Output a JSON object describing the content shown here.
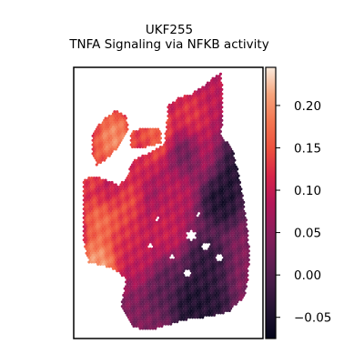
{
  "chart_data": {
    "type": "heatmap",
    "title": "UKF255",
    "subtitle": "TNFA Signaling via NFKB activity",
    "xlabel": "",
    "ylabel": "",
    "colormap": "rocket",
    "colorbar": {
      "range": [
        -0.075,
        0.245
      ],
      "ticks": [
        -0.05,
        0.0,
        0.05,
        0.1,
        0.15,
        0.2
      ],
      "tick_labels": [
        "−0.05",
        "0.00",
        "0.05",
        "0.10",
        "0.15",
        "0.20"
      ],
      "placement": "right"
    },
    "grid": false,
    "hotspots": [
      {
        "x": 0.13,
        "y": 0.73,
        "v": 0.23
      },
      {
        "x": 0.16,
        "y": 0.55,
        "v": 0.2
      },
      {
        "x": 0.25,
        "y": 0.48,
        "v": 0.18
      },
      {
        "x": 0.12,
        "y": 0.38,
        "v": 0.17
      },
      {
        "x": 0.22,
        "y": 0.27,
        "v": 0.22
      },
      {
        "x": 0.43,
        "y": 0.25,
        "v": 0.18
      },
      {
        "x": 0.34,
        "y": 0.33,
        "v": 0.12
      },
      {
        "x": 0.55,
        "y": 0.44,
        "v": 0.1
      },
      {
        "x": 0.62,
        "y": 0.18,
        "v": 0.14
      },
      {
        "x": 0.72,
        "y": 0.32,
        "v": 0.12
      },
      {
        "x": 0.48,
        "y": 0.6,
        "v": 0.11
      },
      {
        "x": 0.36,
        "y": 0.7,
        "v": 0.1
      },
      {
        "x": 0.75,
        "y": 0.1,
        "v": 0.1
      },
      {
        "x": 0.28,
        "y": 0.62,
        "v": 0.13
      },
      {
        "x": 0.8,
        "y": 0.35,
        "v": -0.07
      },
      {
        "x": 0.78,
        "y": 0.48,
        "v": -0.06
      },
      {
        "x": 0.62,
        "y": 0.87,
        "v": -0.06
      },
      {
        "x": 0.72,
        "y": 0.88,
        "v": -0.05
      },
      {
        "x": 0.7,
        "y": 0.73,
        "v": -0.04
      },
      {
        "x": 0.48,
        "y": 0.8,
        "v": 0.0
      },
      {
        "x": 0.2,
        "y": 0.45,
        "v": 0.04
      },
      {
        "x": 0.6,
        "y": 0.33,
        "v": 0.01
      }
    ]
  }
}
